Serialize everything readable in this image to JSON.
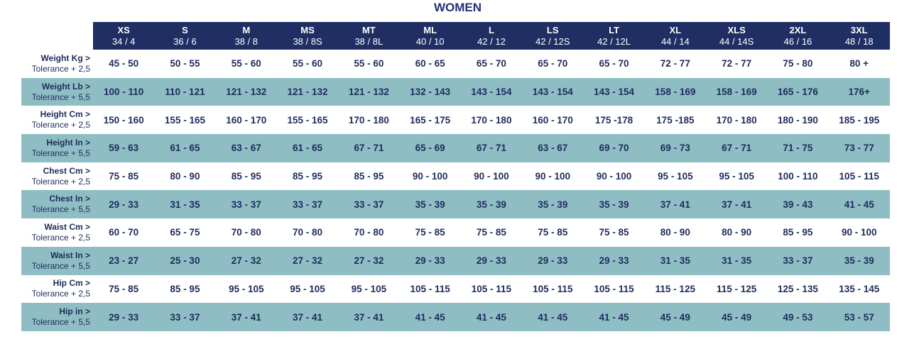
{
  "header": {
    "title": "WOMEN"
  },
  "table": {
    "columns": [
      {
        "size": "XS",
        "code": "34 / 4"
      },
      {
        "size": "S",
        "code": "36 / 6"
      },
      {
        "size": "M",
        "code": "38 / 8"
      },
      {
        "size": "MS",
        "code": "38 / 8S"
      },
      {
        "size": "MT",
        "code": "38 / 8L"
      },
      {
        "size": "ML",
        "code": "40 / 10"
      },
      {
        "size": "L",
        "code": "42 / 12"
      },
      {
        "size": "LS",
        "code": "42 / 12S"
      },
      {
        "size": "LT",
        "code": "42 / 12L"
      },
      {
        "size": "XL",
        "code": "44 / 14"
      },
      {
        "size": "XLS",
        "code": "44 / 14S"
      },
      {
        "size": "2XL",
        "code": "46 / 16"
      },
      {
        "size": "3XL",
        "code": "48 / 18"
      }
    ],
    "rows": [
      {
        "label": "Weight Kg >",
        "tolerance": "Tolerance + 2,5",
        "cells": [
          "45 - 50",
          "50 - 55",
          "55 - 60",
          "55 - 60",
          "55 - 60",
          "60 - 65",
          "65 - 70",
          "65 - 70",
          "65 - 70",
          "72 - 77",
          "72 - 77",
          "75 - 80",
          "80 +"
        ]
      },
      {
        "label": "Weight Lb >",
        "tolerance": "Tolerance + 5,5",
        "cells": [
          "100 - 110",
          "110 - 121",
          "121 - 132",
          "121 - 132",
          "121 - 132",
          "132 - 143",
          "143 - 154",
          "143 - 154",
          "143 - 154",
          "158 - 169",
          "158 - 169",
          "165 - 176",
          "176+"
        ]
      },
      {
        "label": "Height Cm >",
        "tolerance": "Tolerance + 2,5",
        "cells": [
          "150 - 160",
          "155 - 165",
          "160 - 170",
          "155 - 165",
          "170 - 180",
          "165 - 175",
          "170 - 180",
          "160 - 170",
          "175 -178",
          "175 -185",
          "170 - 180",
          "180 - 190",
          "185 - 195"
        ]
      },
      {
        "label": "Height In >",
        "tolerance": "Tolerance + 5,5",
        "cells": [
          "59 - 63",
          "61 - 65",
          "63 - 67",
          "61 - 65",
          "67 - 71",
          "65 - 69",
          "67 - 71",
          "63 - 67",
          "69 - 70",
          "69 - 73",
          "67 - 71",
          "71 - 75",
          "73 - 77"
        ]
      },
      {
        "label": "Chest Cm >",
        "tolerance": "Tolerance + 2,5",
        "cells": [
          "75 - 85",
          "80 - 90",
          "85 - 95",
          "85 - 95",
          "85 - 95",
          "90 - 100",
          "90 - 100",
          "90 - 100",
          "90 - 100",
          "95 - 105",
          "95 - 105",
          "100 - 110",
          "105 - 115"
        ]
      },
      {
        "label": "Chest In >",
        "tolerance": "Tolerance + 5,5",
        "cells": [
          "29 - 33",
          "31 - 35",
          "33 - 37",
          "33 - 37",
          "33 - 37",
          "35 - 39",
          "35 - 39",
          "35 - 39",
          "35 - 39",
          "37 - 41",
          "37 - 41",
          "39 - 43",
          "41 - 45"
        ]
      },
      {
        "label": "Waist Cm >",
        "tolerance": "Tolerance + 2,5",
        "cells": [
          "60 - 70",
          "65 - 75",
          "70 - 80",
          "70 - 80",
          "70 - 80",
          "75 - 85",
          "75 - 85",
          "75 - 85",
          "75 - 85",
          "80 - 90",
          "80 - 90",
          "85 - 95",
          "90 - 100"
        ]
      },
      {
        "label": "Waist In >",
        "tolerance": "Tolerance + 5,5",
        "cells": [
          "23 - 27",
          "25 - 30",
          "27 - 32",
          "27 - 32",
          "27 - 32",
          "29 - 33",
          "29 - 33",
          "29 - 33",
          "29 - 33",
          "31 - 35",
          "31 - 35",
          "33 - 37",
          "35 - 39"
        ]
      },
      {
        "label": "Hip Cm >",
        "tolerance": "Tolerance + 2,5",
        "cells": [
          "75 - 85",
          "85 - 95",
          "95 - 105",
          "95 - 105",
          "95 - 105",
          "105 - 115",
          "105 - 115",
          "105 - 115",
          "105 - 115",
          "115 - 125",
          "115 - 125",
          "125 - 135",
          "135 - 145"
        ]
      },
      {
        "label": "Hip in >",
        "tolerance": "Tolerance + 5,5",
        "cells": [
          "29 - 33",
          "33 - 37",
          "37 - 41",
          "37 - 41",
          "37 - 41",
          "41 - 45",
          "41 - 45",
          "41 - 45",
          "41 - 45",
          "45 - 49",
          "45 - 49",
          "49 - 53",
          "53 - 57"
        ]
      }
    ]
  }
}
